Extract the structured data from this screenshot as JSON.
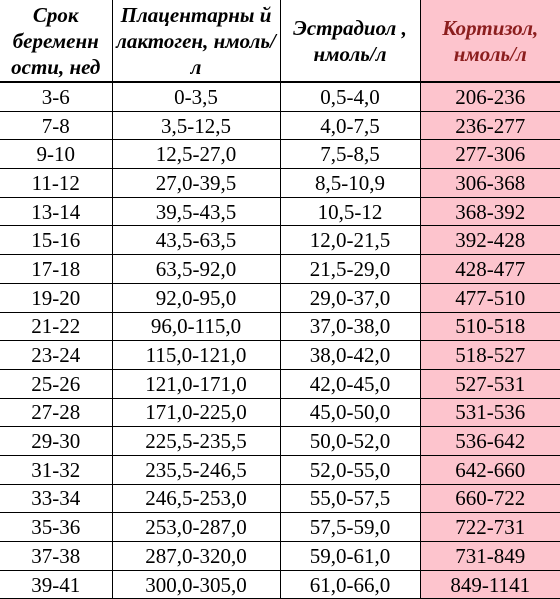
{
  "table": {
    "headers": [
      "Срок беременн ости, нед",
      "Плацентарны й лактоген, нмоль/л",
      "Эстрадиол , нмоль/л",
      "Кортизол, нмоль/л"
    ],
    "rows": [
      [
        "3-6",
        "0-3,5",
        "0,5-4,0",
        "206-236"
      ],
      [
        "7-8",
        "3,5-12,5",
        "4,0-7,5",
        "236-277"
      ],
      [
        "9-10",
        "12,5-27,0",
        "7,5-8,5",
        "277-306"
      ],
      [
        "11-12",
        "27,0-39,5",
        "8,5-10,9",
        "306-368"
      ],
      [
        "13-14",
        "39,5-43,5",
        "10,5-12",
        "368-392"
      ],
      [
        "15-16",
        "43,5-63,5",
        "12,0-21,5",
        "392-428"
      ],
      [
        "17-18",
        "63,5-92,0",
        "21,5-29,0",
        "428-477"
      ],
      [
        "19-20",
        "92,0-95,0",
        "29,0-37,0",
        "477-510"
      ],
      [
        "21-22",
        "96,0-115,0",
        "37,0-38,0",
        "510-518"
      ],
      [
        "23-24",
        "115,0-121,0",
        "38,0-42,0",
        "518-527"
      ],
      [
        "25-26",
        "121,0-171,0",
        "42,0-45,0",
        "527-531"
      ],
      [
        "27-28",
        "171,0-225,0",
        "45,0-50,0",
        "531-536"
      ],
      [
        "29-30",
        "225,5-235,5",
        "50,0-52,0",
        "536-642"
      ],
      [
        "31-32",
        "235,5-246,5",
        "52,0-55,0",
        "642-660"
      ],
      [
        "33-34",
        "246,5-253,0",
        "55,0-57,5",
        "660-722"
      ],
      [
        "35-36",
        "253,0-287,0",
        "57,5-59,0",
        "722-731"
      ],
      [
        "37-38",
        "287,0-320,0",
        "59,0-61,0",
        "731-849"
      ],
      [
        "39-41",
        "300,0-305,0",
        "61,0-66,0",
        "849-1141"
      ]
    ]
  },
  "colors": {
    "highlight_background": "#fdc4cd",
    "highlight_header_text": "#8b1e1e"
  }
}
